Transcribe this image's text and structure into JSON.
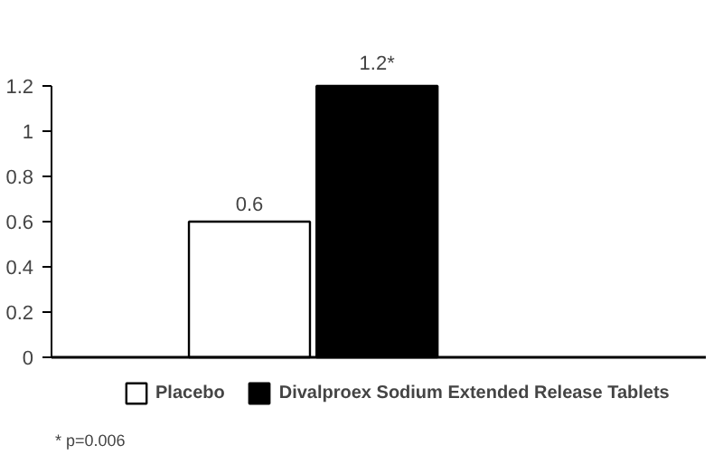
{
  "chart_data": {
    "type": "bar",
    "categories": [
      null
    ],
    "series": [
      {
        "name": "Placebo",
        "color": "#ffffff",
        "values": [
          0.6
        ],
        "value_labels": [
          "0.6"
        ]
      },
      {
        "name": "Divalproex Sodium Extended Release Tablets",
        "color": "#000000",
        "values": [
          1.2
        ],
        "value_labels": [
          "1.2*"
        ]
      }
    ],
    "ylim": [
      0,
      1.2
    ],
    "yticks": [
      0,
      0.2,
      0.4,
      0.6,
      0.8,
      1,
      1.2
    ],
    "grid": false,
    "legend": "bottom",
    "tick_labels": "y",
    "annotations": [
      "* p=0.006"
    ]
  }
}
